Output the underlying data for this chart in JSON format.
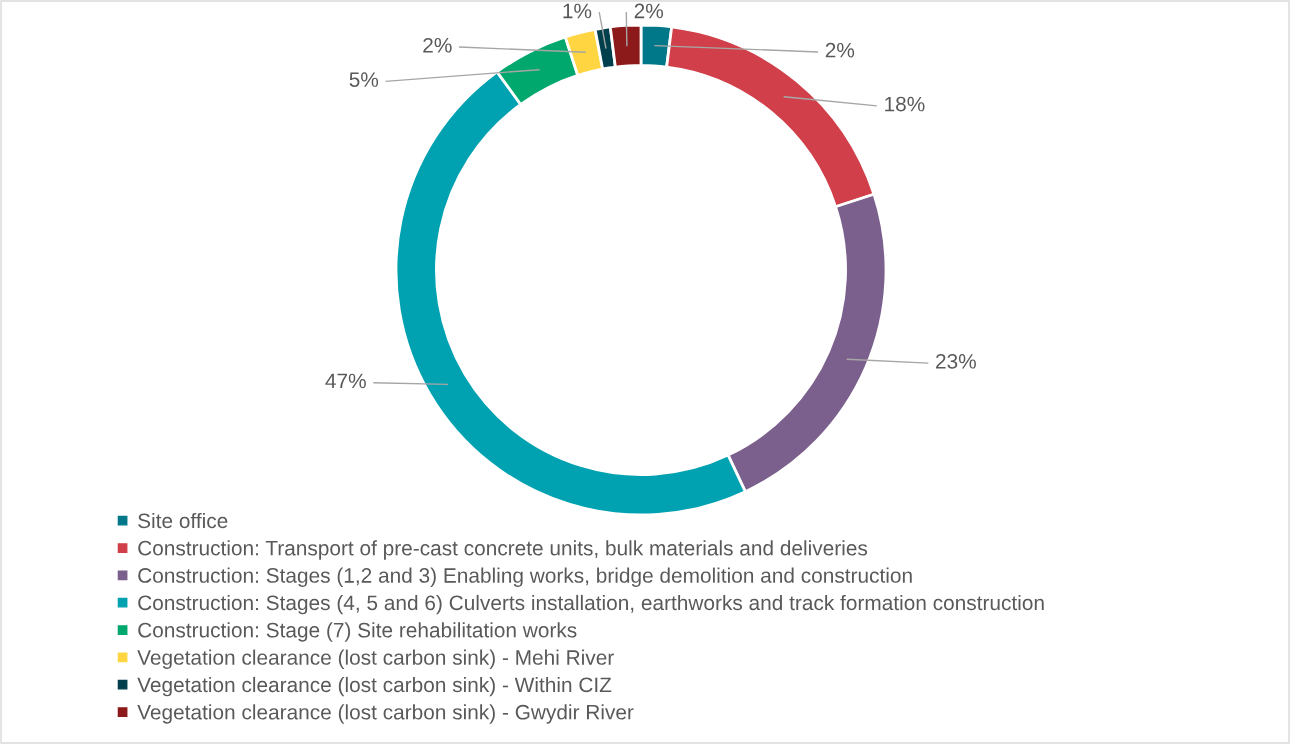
{
  "chart_data": {
    "type": "donut",
    "categories": [
      "Site office",
      "Construction: Transport of pre-cast concrete units, bulk materials and deliveries",
      "Construction: Stages (1,2 and 3) Enabling works, bridge demolition and construction",
      "Construction: Stages (4, 5 and 6) Culverts installation, earthworks and track formation construction",
      "Construction: Stage (7) Site rehabilitation works",
      "Vegetation clearance (lost carbon sink) - Mehi River",
      "Vegetation clearance (lost carbon sink) - Within CIZ",
      "Vegetation clearance (lost carbon sink) - Gwydir River"
    ],
    "values": [
      2,
      18,
      23,
      47,
      5,
      2,
      1,
      2
    ],
    "colors": [
      "#00788a",
      "#d1404a",
      "#7b5f8c",
      "#00a1b1",
      "#00a86e",
      "#ffd642",
      "#003f4c",
      "#8c1a1a"
    ],
    "value_labels": [
      "2%",
      "18%",
      "23%",
      "47%",
      "5%",
      "2%",
      "1%",
      "2%"
    ],
    "legend": "bottom"
  }
}
